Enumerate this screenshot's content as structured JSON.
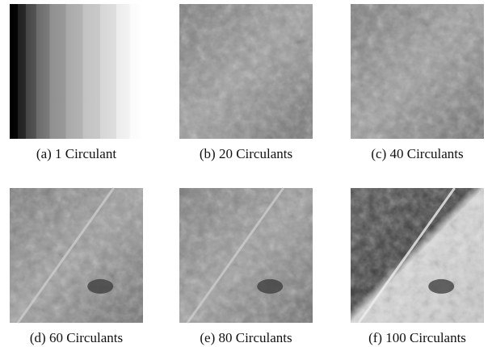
{
  "figure": {
    "panels": [
      {
        "caption": "(a) 1 Circulant"
      },
      {
        "caption": "(b) 20 Circulants"
      },
      {
        "caption": "(c) 40 Circulants"
      },
      {
        "caption": "(d) 60 Circulants"
      },
      {
        "caption": "(e) 80 Circulants"
      },
      {
        "caption": "(f) 100 Circulants"
      }
    ]
  }
}
